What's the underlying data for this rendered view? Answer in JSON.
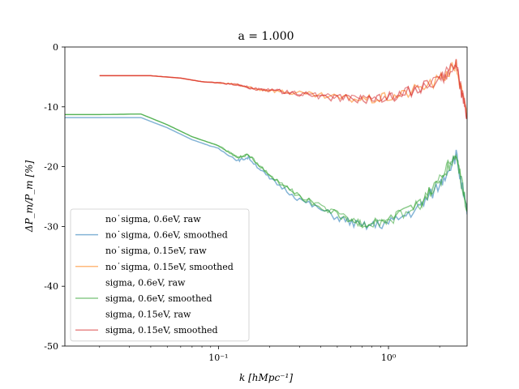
{
  "chart_data": {
    "type": "line",
    "title": "a = 1.000",
    "xlabel": "k [hMpc⁻¹]",
    "ylabel": "ΔP_m/P_m [%]",
    "xscale": "log",
    "xlim": [
      0.0125,
      2.9
    ],
    "ylim": [
      -50,
      0
    ],
    "x_ticks": [
      {
        "value": 0.1,
        "label": "10⁻¹"
      },
      {
        "value": 1,
        "label": "10⁰"
      }
    ],
    "y_ticks": [
      {
        "value": 0,
        "label": "0"
      },
      {
        "value": -10,
        "label": "-10"
      },
      {
        "value": -20,
        "label": "-20"
      },
      {
        "value": -30,
        "label": "-30"
      },
      {
        "value": -40,
        "label": "-40"
      },
      {
        "value": -50,
        "label": "-50"
      }
    ],
    "grid": false,
    "legend_position": "lower-left",
    "series": [
      {
        "name": "no˙sigma, 0.6eV, raw",
        "color": "#1f77b4",
        "style": "raw",
        "visible": false,
        "x": [
          0.0125,
          0.02,
          0.035,
          0.05,
          0.07,
          0.1,
          0.13,
          0.15,
          0.2,
          0.3,
          0.5,
          0.7,
          1.0,
          1.5,
          2.0,
          2.5,
          2.9
        ],
        "y": [
          -11.8,
          -11.8,
          -11.8,
          -13.5,
          -15.5,
          -17.0,
          -19.0,
          -18.5,
          -22.0,
          -25.5,
          -28.5,
          -30.0,
          -29.5,
          -27.0,
          -23.0,
          -18.0,
          -28.0
        ]
      },
      {
        "name": "no˙sigma, 0.6eV, smoothed",
        "color": "#1f77b4",
        "style": "smoothed",
        "x": [
          0.0125,
          0.02,
          0.035,
          0.05,
          0.07,
          0.1,
          0.13,
          0.15,
          0.2,
          0.3,
          0.5,
          0.7,
          1.0,
          1.5,
          2.0,
          2.5,
          2.9
        ],
        "y": [
          -11.8,
          -11.8,
          -11.8,
          -13.5,
          -15.5,
          -17.0,
          -19.0,
          -18.5,
          -22.0,
          -25.5,
          -28.5,
          -30.0,
          -29.5,
          -27.0,
          -23.0,
          -18.0,
          -28.0
        ]
      },
      {
        "name": "no˙sigma, 0.15eV, raw",
        "color": "#ff7f0e",
        "style": "raw",
        "visible": false,
        "x": [
          0.02,
          0.04,
          0.06,
          0.08,
          0.1,
          0.13,
          0.16,
          0.2,
          0.3,
          0.5,
          0.8,
          1.2,
          2.0,
          2.5,
          2.9
        ],
        "y": [
          -4.8,
          -4.8,
          -5.2,
          -5.8,
          -6.0,
          -6.3,
          -7.0,
          -7.2,
          -7.8,
          -8.5,
          -8.8,
          -8.0,
          -5.5,
          -3.0,
          -12.0
        ]
      },
      {
        "name": "no˙sigma, 0.15eV, smoothed",
        "color": "#ff7f0e",
        "style": "smoothed",
        "x": [
          0.02,
          0.04,
          0.06,
          0.08,
          0.1,
          0.13,
          0.16,
          0.2,
          0.3,
          0.5,
          0.8,
          1.2,
          2.0,
          2.5,
          2.9
        ],
        "y": [
          -4.8,
          -4.8,
          -5.2,
          -5.8,
          -6.0,
          -6.3,
          -7.0,
          -7.2,
          -7.8,
          -8.5,
          -8.8,
          -8.0,
          -5.5,
          -3.0,
          -12.0
        ]
      },
      {
        "name": "sigma, 0.6eV, raw",
        "color": "#2ca02c",
        "style": "raw",
        "x": [
          0.0125,
          0.02,
          0.035,
          0.05,
          0.07,
          0.1,
          0.13,
          0.15,
          0.2,
          0.3,
          0.5,
          0.7,
          1.0,
          1.5,
          2.0,
          2.5,
          2.9
        ],
        "y": [
          -11.3,
          -11.3,
          -11.2,
          -13.0,
          -15.0,
          -16.5,
          -18.5,
          -18.0,
          -21.5,
          -25.0,
          -28.0,
          -29.5,
          -29.0,
          -26.5,
          -22.5,
          -17.5,
          -27.5
        ]
      },
      {
        "name": "sigma, 0.6eV, smoothed",
        "color": "#2ca02c",
        "style": "smoothed",
        "x": [
          0.0125,
          0.02,
          0.035,
          0.05,
          0.07,
          0.1,
          0.13,
          0.15,
          0.2,
          0.3,
          0.5,
          0.7,
          1.0,
          1.5,
          2.0,
          2.5,
          2.9
        ],
        "y": [
          -11.3,
          -11.3,
          -11.2,
          -13.0,
          -15.0,
          -16.5,
          -18.5,
          -18.0,
          -21.5,
          -25.0,
          -28.0,
          -29.5,
          -29.0,
          -26.5,
          -22.5,
          -17.5,
          -27.5
        ]
      },
      {
        "name": "sigma, 0.15eV, raw",
        "color": "#d62728",
        "style": "raw",
        "x": [
          0.02,
          0.04,
          0.06,
          0.08,
          0.1,
          0.13,
          0.16,
          0.2,
          0.3,
          0.5,
          0.8,
          1.2,
          2.0,
          2.5,
          2.9
        ],
        "y": [
          -4.8,
          -4.8,
          -5.2,
          -5.8,
          -6.0,
          -6.3,
          -7.0,
          -7.2,
          -7.8,
          -8.5,
          -8.8,
          -8.0,
          -5.5,
          -3.0,
          -12.0
        ]
      },
      {
        "name": "sigma, 0.15eV, smoothed",
        "color": "#d62728",
        "style": "smoothed",
        "x": [
          0.02,
          0.04,
          0.06,
          0.08,
          0.1,
          0.13,
          0.16,
          0.2,
          0.3,
          0.5,
          0.8,
          1.2,
          2.0,
          2.5,
          2.9
        ],
        "y": [
          -4.8,
          -4.8,
          -5.2,
          -5.8,
          -6.0,
          -6.3,
          -7.0,
          -7.2,
          -7.8,
          -8.5,
          -8.8,
          -8.0,
          -5.5,
          -3.0,
          -12.0
        ]
      }
    ]
  }
}
